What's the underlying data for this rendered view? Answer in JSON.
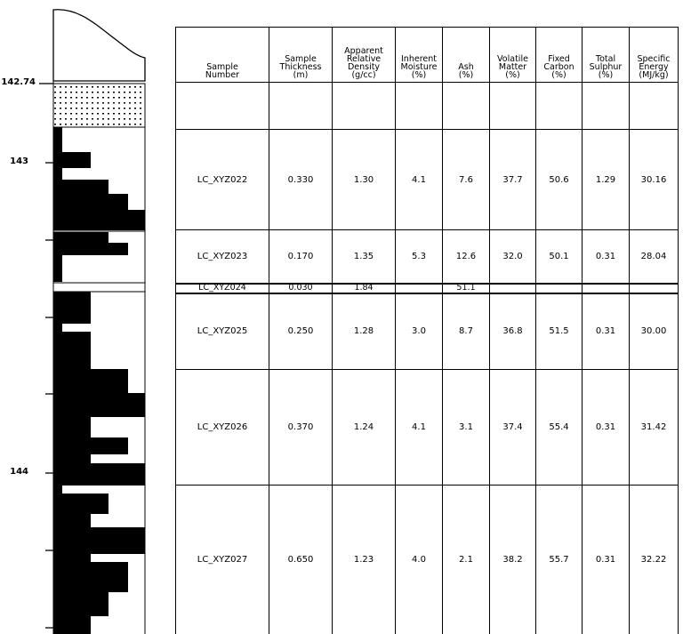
{
  "log": {
    "depth_labels": [
      "142.74",
      "143",
      "144"
    ]
  },
  "table": {
    "headers": [
      [
        "Sample",
        "Number"
      ],
      [
        "Sample",
        "Thickness",
        "(m)"
      ],
      [
        "Apparent",
        "Relative",
        "Density",
        "(g/cc)"
      ],
      [
        "Inherent",
        "Moisture",
        "(%)"
      ],
      [
        "Ash",
        "(%)"
      ],
      [
        "Volatile",
        "Matter",
        "(%)"
      ],
      [
        "Fixed",
        "Carbon",
        "(%)"
      ],
      [
        "Total",
        "Sulphur",
        "(%)"
      ],
      [
        "Specific",
        "Energy",
        "(MJ/kg)"
      ]
    ],
    "rows": [
      [
        "",
        "",
        "",
        "",
        "",
        "",
        "",
        "",
        ""
      ],
      [
        "LC_XYZ022",
        "0.330",
        "1.30",
        "4.1",
        "7.6",
        "37.7",
        "50.6",
        "1.29",
        "30.16"
      ],
      [
        "LC_XYZ023",
        "0.170",
        "1.35",
        "5.3",
        "12.6",
        "32.0",
        "50.1",
        "0.31",
        "28.04"
      ],
      [
        "LC_XYZ024",
        "0.030",
        "1.84",
        "",
        "51.1",
        "",
        "",
        "",
        ""
      ],
      [
        "LC_XYZ025",
        "0.250",
        "1.28",
        "3.0",
        "8.7",
        "36.8",
        "51.5",
        "0.31",
        "30.00"
      ],
      [
        "LC_XYZ026",
        "0.370",
        "1.24",
        "4.1",
        "3.1",
        "37.4",
        "55.4",
        "0.31",
        "31.42"
      ],
      [
        "LC_XYZ027",
        "0.650",
        "1.23",
        "4.0",
        "2.1",
        "38.2",
        "55.7",
        "0.31",
        "32.22"
      ]
    ]
  }
}
